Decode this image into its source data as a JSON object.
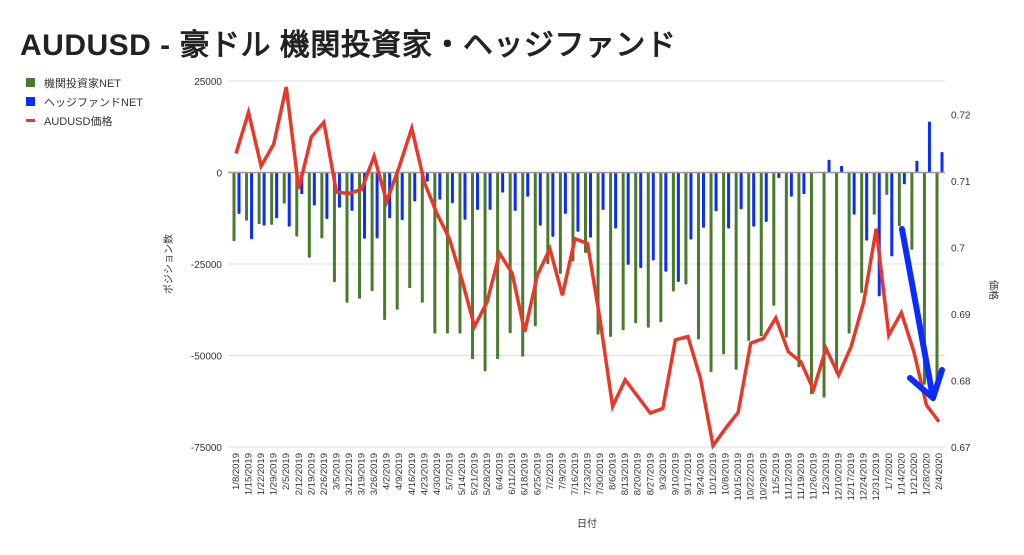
{
  "title": "AUDUSD - 豪ドル 機関投資家・ヘッジファンド",
  "chart_data": {
    "type": "bar+line",
    "title": "AUDUSD - 豪ドル 機関投資家・ヘッジファンド",
    "xlabel": "日付",
    "ylabel": "ポジション数",
    "y2label": "価格",
    "ylim": [
      -75000,
      25000
    ],
    "y2lim": [
      0.67,
      0.725
    ],
    "yticks": [
      "25000",
      "0",
      "-25000",
      "-50000",
      "-75000"
    ],
    "ytick_values": [
      25000,
      0,
      -25000,
      -50000,
      -75000
    ],
    "y2ticks": [
      "0.72",
      "0.71",
      "0.7",
      "0.69",
      "0.68",
      "0.67"
    ],
    "y2tick_values": [
      0.72,
      0.71,
      0.7,
      0.69,
      0.68,
      0.67
    ],
    "grid": true,
    "legend_position": "left",
    "categories": [
      "1/8/2019",
      "1/15/2019",
      "1/22/2019",
      "1/29/2019",
      "2/5/2019",
      "2/12/2019",
      "2/19/2019",
      "2/26/2019",
      "3/5/2019",
      "3/12/2019",
      "3/19/2019",
      "3/26/2019",
      "4/2/2019",
      "4/9/2019",
      "4/16/2019",
      "4/23/2019",
      "4/30/2019",
      "5/7/2019",
      "5/14/2019",
      "5/21/2019",
      "5/28/2019",
      "6/4/2019",
      "6/11/2019",
      "6/18/2019",
      "6/25/2019",
      "7/2/2019",
      "7/9/2019",
      "7/16/2019",
      "7/23/2019",
      "7/30/2019",
      "8/6/2019",
      "8/13/2019",
      "8/20/2019",
      "8/27/2019",
      "9/3/2019",
      "9/10/2019",
      "9/17/2019",
      "9/24/2019",
      "10/1/2019",
      "10/8/2019",
      "10/15/2019",
      "10/22/2019",
      "10/29/2019",
      "11/5/2019",
      "11/12/2019",
      "11/19/2019",
      "11/26/2019",
      "12/3/2019",
      "12/10/2019",
      "12/17/2019",
      "12/24/2019",
      "12/31/2019",
      "1/7/2020",
      "1/14/2020",
      "1/21/2020",
      "1/28/2020",
      "2/4/2020"
    ],
    "series": [
      {
        "name": "機関投資家NET",
        "type": "bar",
        "axis": "left",
        "color": "#4a7a2c",
        "values": [
          -18800,
          -13200,
          -14100,
          -14300,
          -8500,
          -17500,
          -23300,
          -18000,
          -30000,
          -35600,
          -34500,
          -32400,
          -40300,
          -37500,
          -31600,
          -35600,
          -44000,
          -44000,
          -44000,
          -51000,
          -54300,
          -51000,
          -43900,
          -50300,
          -42000,
          -25000,
          -27700,
          -24300,
          -22000,
          -44300,
          -44900,
          -43100,
          -41200,
          -42400,
          -40900,
          -32500,
          -30600,
          -45600,
          -54500,
          -49700,
          -53900,
          -46000,
          -44700,
          -36400,
          -45100,
          -53200,
          -60600,
          -61500,
          -55000,
          -44000,
          -32900,
          -11500,
          -6100,
          -14700,
          -21100,
          -58000,
          -60000
        ]
      },
      {
        "name": "ヘッジファンドNET",
        "type": "bar",
        "axis": "left",
        "color": "#0a2cff",
        "values": [
          -11300,
          -18200,
          -14500,
          -12500,
          -14800,
          -5900,
          -9000,
          -12700,
          -9600,
          -10500,
          -18100,
          -18000,
          -12500,
          -13000,
          -7900,
          -2500,
          -7400,
          -8400,
          -12900,
          -10200,
          -10200,
          -5500,
          -10500,
          -6600,
          -14500,
          -17600,
          -11300,
          -16200,
          -17800,
          -10200,
          -15300,
          -25200,
          -26100,
          -24000,
          -27100,
          -29900,
          -18300,
          -15100,
          -10600,
          -15300,
          -10000,
          -14800,
          -13500,
          -1500,
          -6600,
          -5900,
          0,
          3500,
          1800,
          -11500,
          -18600,
          -33800,
          -22900,
          -3200,
          3200,
          13900,
          5600
        ]
      },
      {
        "name": "AUDUSD価格",
        "type": "line",
        "axis": "right",
        "color": "#e8382a",
        "values": [
          0.7141,
          0.7203,
          0.7122,
          0.7155,
          0.7241,
          0.7088,
          0.7166,
          0.7188,
          0.7083,
          0.7081,
          0.7087,
          0.7137,
          0.7069,
          0.7121,
          0.7179,
          0.7098,
          0.7051,
          0.7013,
          0.6951,
          0.6881,
          0.6918,
          0.6991,
          0.6961,
          0.6873,
          0.6958,
          0.6998,
          0.6928,
          0.7013,
          0.7006,
          0.6891,
          0.6761,
          0.6801,
          0.6776,
          0.6751,
          0.6758,
          0.6861,
          0.6866,
          0.6803,
          0.6702,
          0.6728,
          0.6752,
          0.6856,
          0.6863,
          0.6894,
          0.6843,
          0.6828,
          0.6786,
          0.6848,
          0.6808,
          0.6851,
          0.6918,
          0.7028,
          0.6868,
          0.6902,
          0.6843,
          0.6763,
          0.6738
        ]
      }
    ],
    "annotations": [
      {
        "type": "arrow",
        "color": "#0a2cff",
        "from_category": "1/14/2020",
        "to_category": "2/4/2020",
        "direction": "down"
      }
    ]
  }
}
